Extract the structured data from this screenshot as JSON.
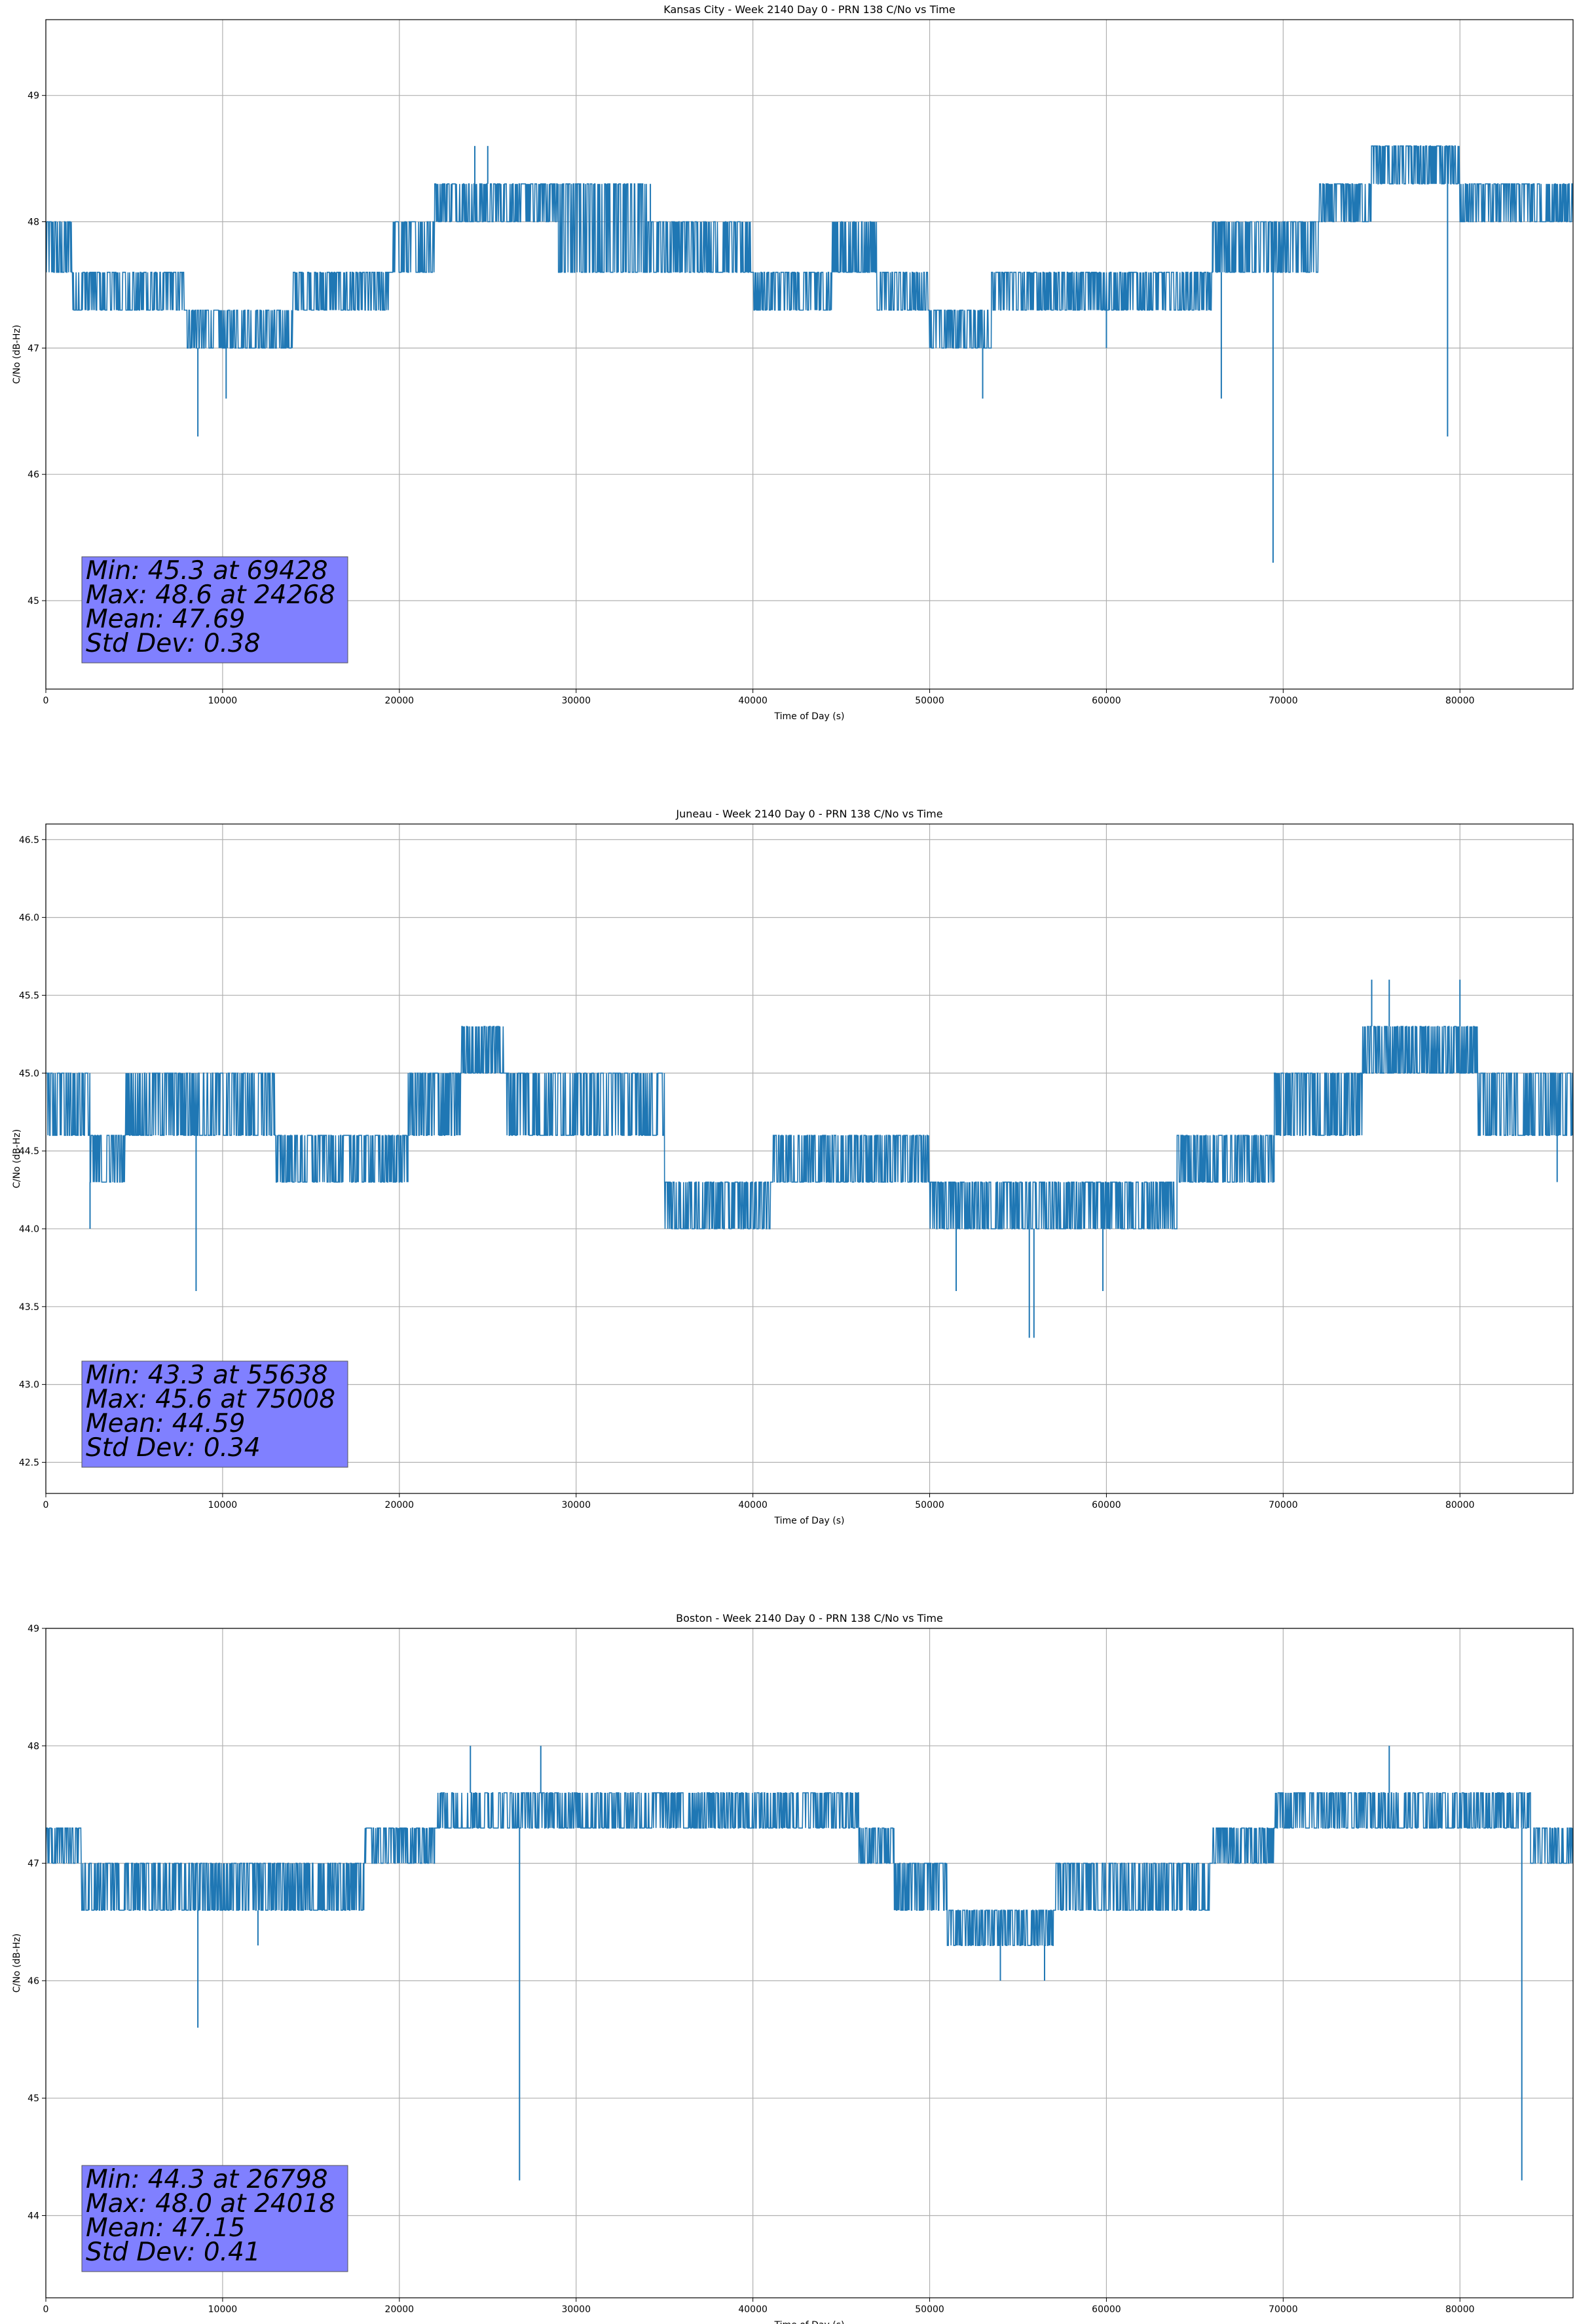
{
  "figure": {
    "accent_color": "#1f77b4",
    "stats_box_color": "#8080ff"
  },
  "chart_data": [
    {
      "type": "line",
      "title": "Kansas City - Week 2140 Day 0 - PRN 138 C/No vs Time",
      "xlabel": "Time of Day (s)",
      "ylabel": "C/No (dB-Hz)",
      "xlim": [
        0,
        86400
      ],
      "ylim": [
        44.3,
        49.6
      ],
      "xticks": [
        "0",
        "10000",
        "20000",
        "30000",
        "40000",
        "50000",
        "60000",
        "70000",
        "80000"
      ],
      "yticks": [
        "45",
        "46",
        "47",
        "48",
        "49"
      ],
      "grid": true,
      "stats": {
        "min_line": "Min: 45.3 at 69428",
        "max_line": "Max: 48.6 at 24268",
        "mean_line": "Mean: 47.69",
        "std_line": "Std Dev: 0.38"
      },
      "series": [
        {
          "levels": [
            47.0,
            47.3,
            47.6,
            48.0,
            48.3,
            48.6
          ],
          "bands": [
            [
              0,
              1500,
              47.6,
              48.0
            ],
            [
              1500,
              8000,
              47.3,
              47.6
            ],
            [
              8000,
              14000,
              47.0,
              47.3
            ],
            [
              14000,
              19500,
              47.3,
              47.6
            ],
            [
              19500,
              22000,
              47.6,
              48.0
            ],
            [
              22000,
              29000,
              48.0,
              48.3
            ],
            [
              29000,
              34000,
              47.6,
              48.3
            ],
            [
              34000,
              40000,
              47.6,
              48.0
            ],
            [
              40000,
              44500,
              47.3,
              47.6
            ],
            [
              44500,
              47000,
              47.6,
              48.0
            ],
            [
              47000,
              50000,
              47.3,
              47.6
            ],
            [
              50000,
              53500,
              47.0,
              47.3
            ],
            [
              53500,
              57000,
              47.3,
              47.6
            ],
            [
              57000,
              62000,
              47.3,
              47.6
            ],
            [
              62000,
              66000,
              47.3,
              47.6
            ],
            [
              66000,
              69500,
              47.6,
              48.0
            ],
            [
              69500,
              72000,
              47.6,
              48.0
            ],
            [
              72000,
              75000,
              48.0,
              48.3
            ],
            [
              75000,
              80000,
              48.3,
              48.6
            ],
            [
              80000,
              86400,
              48.0,
              48.3
            ]
          ],
          "spikes": [
            [
              8600,
              46.3
            ],
            [
              10200,
              46.6
            ],
            [
              69428,
              45.3
            ],
            [
              79300,
              46.3
            ],
            [
              66500,
              46.6
            ],
            [
              24268,
              48.6
            ],
            [
              25000,
              48.6
            ],
            [
              53000,
              46.6
            ],
            [
              34200,
              48.3
            ],
            [
              60000,
              47.0
            ]
          ]
        }
      ]
    },
    {
      "type": "line",
      "title": "Juneau - Week 2140 Day 0 - PRN 138 C/No vs Time",
      "xlabel": "Time of Day (s)",
      "ylabel": "C/No (dB-Hz)",
      "xlim": [
        0,
        86400
      ],
      "ylim": [
        42.3,
        46.6
      ],
      "xticks": [
        "0",
        "10000",
        "20000",
        "30000",
        "40000",
        "50000",
        "60000",
        "70000",
        "80000"
      ],
      "yticks": [
        "42.5",
        "43.0",
        "43.5",
        "44.0",
        "44.5",
        "45.0",
        "45.5",
        "46.0",
        "46.5"
      ],
      "grid": true,
      "stats": {
        "min_line": "Min: 43.3 at 55638",
        "max_line": "Max: 45.6 at 75008",
        "mean_line": "Mean: 44.59",
        "std_line": "Std Dev: 0.34"
      },
      "series": [
        {
          "levels": [
            44.0,
            44.3,
            44.6,
            45.0,
            45.3
          ],
          "bands": [
            [
              0,
              2500,
              44.6,
              45.0
            ],
            [
              2500,
              4500,
              44.3,
              44.6
            ],
            [
              4500,
              13000,
              44.6,
              45.0
            ],
            [
              13000,
              18000,
              44.3,
              44.6
            ],
            [
              18000,
              20500,
              44.3,
              44.6
            ],
            [
              20500,
              23500,
              44.6,
              45.0
            ],
            [
              23500,
              26000,
              45.0,
              45.3
            ],
            [
              26000,
              31000,
              44.6,
              45.0
            ],
            [
              31000,
              35000,
              44.6,
              45.0
            ],
            [
              35000,
              41000,
              44.0,
              44.3
            ],
            [
              41000,
              50000,
              44.3,
              44.6
            ],
            [
              50000,
              57000,
              44.0,
              44.3
            ],
            [
              57000,
              64000,
              44.0,
              44.3
            ],
            [
              64000,
              69500,
              44.3,
              44.6
            ],
            [
              69500,
              74500,
              44.6,
              45.0
            ],
            [
              74500,
              81000,
              45.0,
              45.3
            ],
            [
              81000,
              86400,
              44.6,
              45.0
            ]
          ],
          "spikes": [
            [
              8500,
              43.6
            ],
            [
              55638,
              43.3
            ],
            [
              55900,
              43.3
            ],
            [
              51500,
              43.6
            ],
            [
              59800,
              43.6
            ],
            [
              75008,
              45.6
            ],
            [
              76000,
              45.6
            ],
            [
              80000,
              45.6
            ],
            [
              85500,
              44.3
            ],
            [
              2500,
              44.0
            ]
          ]
        }
      ]
    },
    {
      "type": "line",
      "title": "Boston - Week 2140 Day 0 - PRN 138 C/No vs Time",
      "xlabel": "Time of Day (s)",
      "ylabel": "C/No (dB-Hz)",
      "xlim": [
        0,
        86400
      ],
      "ylim": [
        43.3,
        49.0
      ],
      "xticks": [
        "0",
        "10000",
        "20000",
        "30000",
        "40000",
        "50000",
        "60000",
        "70000",
        "80000"
      ],
      "yticks": [
        "44",
        "45",
        "46",
        "47",
        "48",
        "49"
      ],
      "grid": true,
      "stats": {
        "min_line": "Min: 44.3 at 26798",
        "max_line": "Max: 48.0 at 24018",
        "mean_line": "Mean: 47.15",
        "std_line": "Std Dev: 0.41"
      },
      "series": [
        {
          "levels": [
            46.0,
            46.3,
            46.6,
            47.0,
            47.3,
            47.6,
            48.0
          ],
          "bands": [
            [
              0,
              2000,
              47.0,
              47.3
            ],
            [
              2000,
              18000,
              46.6,
              47.0
            ],
            [
              18000,
              22000,
              47.0,
              47.3
            ],
            [
              22000,
              24000,
              47.3,
              47.6
            ],
            [
              24000,
              26000,
              47.3,
              47.6
            ],
            [
              26000,
              32000,
              47.3,
              47.6
            ],
            [
              32000,
              46000,
              47.3,
              47.6
            ],
            [
              46000,
              48000,
              47.0,
              47.3
            ],
            [
              48000,
              51000,
              46.6,
              47.0
            ],
            [
              51000,
              53000,
              46.3,
              46.6
            ],
            [
              53000,
              57000,
              46.3,
              46.6
            ],
            [
              57000,
              66000,
              46.6,
              47.0
            ],
            [
              66000,
              69500,
              47.0,
              47.3
            ],
            [
              69500,
              72000,
              47.3,
              47.6
            ],
            [
              72000,
              80000,
              47.3,
              47.6
            ],
            [
              80000,
              84000,
              47.3,
              47.6
            ],
            [
              84000,
              86400,
              47.0,
              47.3
            ]
          ],
          "spikes": [
            [
              8600,
              45.6
            ],
            [
              26798,
              44.3
            ],
            [
              83500,
              44.3
            ],
            [
              54000,
              46.0
            ],
            [
              56500,
              46.0
            ],
            [
              24018,
              48.0
            ],
            [
              28000,
              48.0
            ],
            [
              76000,
              48.0
            ],
            [
              12000,
              46.3
            ],
            [
              6000,
              46.6
            ]
          ]
        }
      ]
    }
  ]
}
